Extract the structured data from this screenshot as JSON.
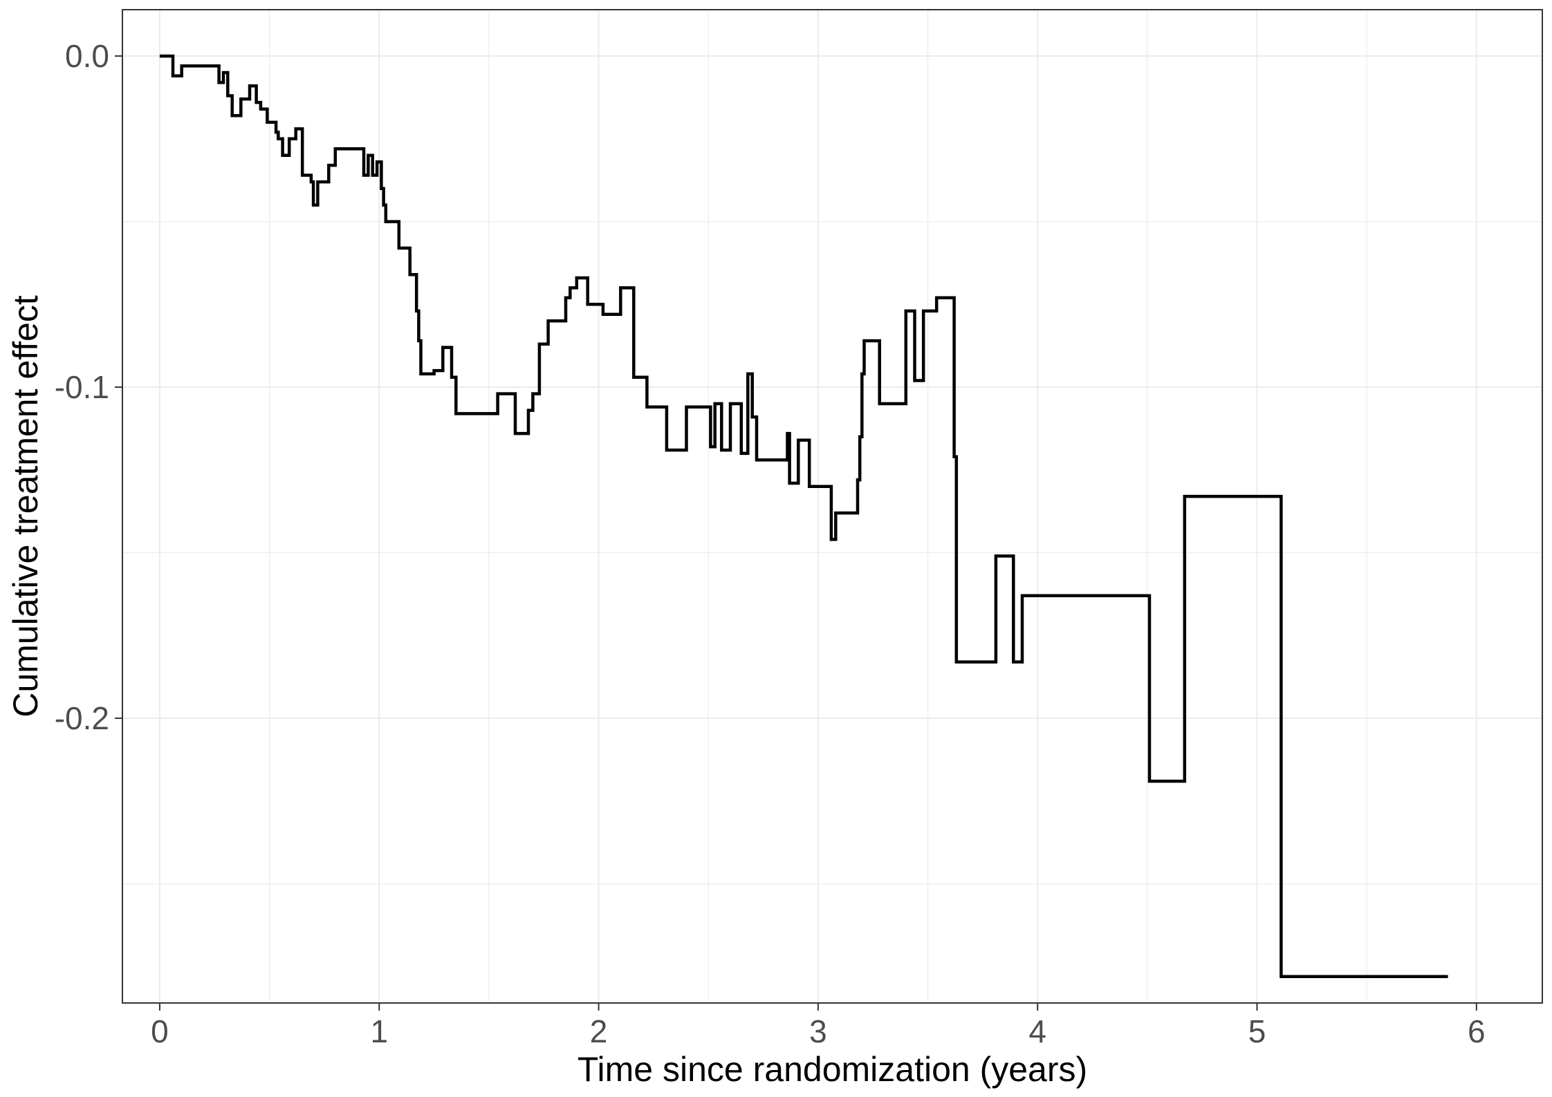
{
  "chart_data": {
    "type": "line",
    "step": true,
    "xlabel": "Time since randomization (years)",
    "ylabel": "Cumulative treatment effect",
    "xlim": [
      -0.17,
      6.3
    ],
    "ylim": [
      -0.286,
      0.014
    ],
    "x_ticks": [
      0,
      1,
      2,
      3,
      4,
      5,
      6
    ],
    "x_tick_labels": [
      "0",
      "1",
      "2",
      "3",
      "4",
      "5",
      "6"
    ],
    "y_ticks": [
      0.0,
      -0.1,
      -0.2
    ],
    "y_tick_labels": [
      "0.0",
      "-0.1",
      "-0.2"
    ],
    "grid": true,
    "colors": {
      "line": "#000000",
      "grid": "#ebebeb",
      "panel_border": "#333333"
    },
    "series": [
      {
        "x": [
          0.0,
          0.06,
          0.1,
          0.27,
          0.29,
          0.31,
          0.33,
          0.37,
          0.41,
          0.44,
          0.46,
          0.49,
          0.53,
          0.54,
          0.56,
          0.59,
          0.62,
          0.65,
          0.69,
          0.7,
          0.72,
          0.73,
          0.77,
          0.8,
          0.93,
          0.95,
          0.97,
          0.99,
          1.01,
          1.02,
          1.03,
          1.04,
          1.09,
          1.14,
          1.17,
          1.18,
          1.19,
          1.25,
          1.29,
          1.33,
          1.35,
          1.54,
          1.62,
          1.68,
          1.7,
          1.73,
          1.77,
          1.85,
          1.87,
          1.9,
          1.95,
          2.02,
          2.1,
          2.16,
          2.22,
          2.31,
          2.4,
          2.51,
          2.53,
          2.56,
          2.6,
          2.65,
          2.68,
          2.7,
          2.72,
          2.86,
          2.87,
          2.91,
          2.96,
          3.06,
          3.08,
          3.1,
          3.18,
          3.19,
          3.2,
          3.21,
          3.28,
          3.4,
          3.44,
          3.48,
          3.54,
          3.62,
          3.63,
          3.64,
          3.81,
          3.89,
          3.93,
          4.51,
          4.67,
          5.11,
          5.87
        ],
        "y": [
          0.0,
          -0.006,
          -0.003,
          -0.008,
          -0.005,
          -0.012,
          -0.018,
          -0.013,
          -0.009,
          -0.014,
          -0.016,
          -0.02,
          -0.023,
          -0.025,
          -0.03,
          -0.025,
          -0.022,
          -0.036,
          -0.038,
          -0.045,
          -0.038,
          -0.038,
          -0.033,
          -0.028,
          -0.036,
          -0.03,
          -0.036,
          -0.032,
          -0.04,
          -0.045,
          -0.05,
          -0.05,
          -0.058,
          -0.066,
          -0.077,
          -0.086,
          -0.096,
          -0.095,
          -0.088,
          -0.097,
          -0.108,
          -0.102,
          -0.114,
          -0.107,
          -0.102,
          -0.087,
          -0.08,
          -0.073,
          -0.07,
          -0.067,
          -0.075,
          -0.078,
          -0.07,
          -0.097,
          -0.106,
          -0.119,
          -0.106,
          -0.118,
          -0.105,
          -0.119,
          -0.105,
          -0.12,
          -0.096,
          -0.109,
          -0.122,
          -0.114,
          -0.129,
          -0.116,
          -0.13,
          -0.146,
          -0.138,
          -0.138,
          -0.128,
          -0.115,
          -0.096,
          -0.086,
          -0.105,
          -0.077,
          -0.098,
          -0.077,
          -0.073,
          -0.121,
          -0.183,
          -0.183,
          -0.151,
          -0.183,
          -0.163,
          -0.219,
          -0.133,
          -0.278,
          -0.278
        ]
      }
    ]
  }
}
